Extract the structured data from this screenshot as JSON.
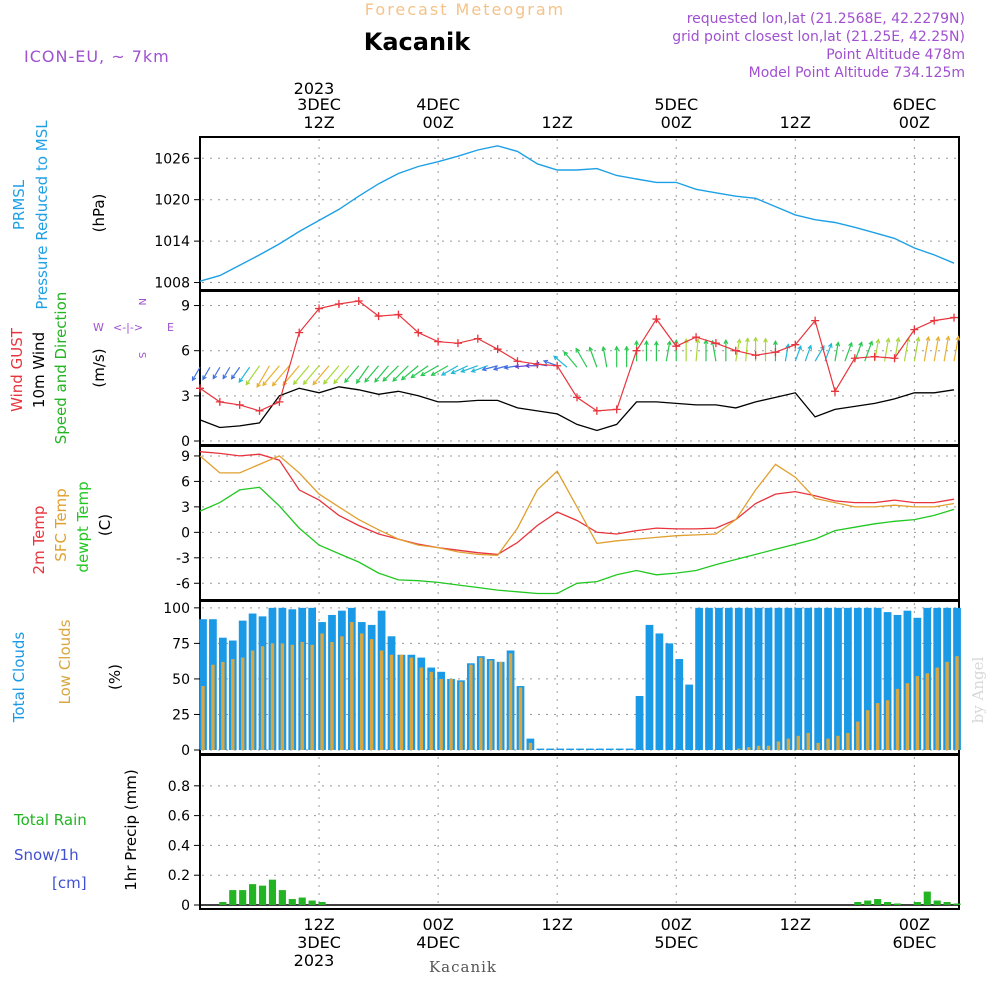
{
  "header": {
    "subtitle": "Forecast Meteogram",
    "title": "Kacanik",
    "model": "ICON-EU, ~ 7km",
    "info": [
      "requested lon,lat (21.2568E, 42.2279N)",
      "grid point closest lon,lat (21.25E, 42.25N)",
      "Point Altitude 478m",
      "Model Point Altitude 734.125m"
    ]
  },
  "footer": {
    "location": "Kacanik",
    "credit": "by Angel"
  },
  "top_axis": {
    "year": "2023",
    "ticks": [
      {
        "t": 12,
        "l1": "3DEC",
        "l2": "12Z"
      },
      {
        "t": 24,
        "l1": "4DEC",
        "l2": "00Z"
      },
      {
        "t": 36,
        "l1": "",
        "l2": "12Z"
      },
      {
        "t": 48,
        "l1": "5DEC",
        "l2": "00Z"
      },
      {
        "t": 60,
        "l1": "",
        "l2": "12Z"
      },
      {
        "t": 72,
        "l1": "6DEC",
        "l2": "00Z"
      }
    ]
  },
  "bottom_axis": {
    "year": "2023",
    "ticks": [
      {
        "t": 12,
        "l1": "12Z",
        "l2": "3DEC"
      },
      {
        "t": 24,
        "l1": "00Z",
        "l2": "4DEC"
      },
      {
        "t": 36,
        "l1": "12Z",
        "l2": ""
      },
      {
        "t": 48,
        "l1": "00Z",
        "l2": "5DEC"
      },
      {
        "t": 60,
        "l1": "12Z",
        "l2": ""
      },
      {
        "t": 72,
        "l1": "00Z",
        "l2": "6DEC"
      }
    ]
  },
  "panel_labels": {
    "pressure": {
      "title1": "PRMSL",
      "title2": "Pressure Reduced to MSL",
      "unit": "(hPa)"
    },
    "wind": {
      "gust": "Wind GUST",
      "wind10": "10m Wind",
      "dir": "Speed and Direction",
      "unit": "(m/s)",
      "compass_ns": "N",
      "compass_s": "S",
      "compass_w": "W",
      "compass_e": "E"
    },
    "temp": {
      "t2m": "2m Temp",
      "sfc": "SFC Temp",
      "dew": "dewpt Temp",
      "unit": "(C)"
    },
    "clouds": {
      "total": "Total Clouds",
      "low": "Low Clouds",
      "unit": "(%)"
    },
    "precip": {
      "rain": "Total  Rain",
      "snow": "Snow/1h",
      "snow_unit": "[cm]",
      "unit": "1hr Precip (mm)"
    }
  },
  "colors": {
    "pressure": "#1ea0e6",
    "gust": "#e8343c",
    "wind10": "#000000",
    "t2m": "#e8343c",
    "sfc": "#e0a030",
    "dew": "#22c822",
    "total_clouds": "#1a9ae6",
    "low_clouds": "#d9a640",
    "rain": "#22b422",
    "label_purple": "#a050d0",
    "title_orange": "#f5c38a"
  },
  "chart_data": [
    {
      "type": "line",
      "name": "PRMSL",
      "xlabel": "",
      "ylabel": "(hPa)",
      "ylim": [
        1007.5,
        1028.5
      ],
      "yticks": [
        1008,
        1014,
        1020,
        1026
      ],
      "time_hours": [
        0,
        2,
        4,
        6,
        8,
        10,
        12,
        14,
        16,
        18,
        20,
        22,
        24,
        26,
        28,
        30,
        32,
        34,
        36,
        38,
        40,
        42,
        44,
        46,
        48,
        50,
        52,
        54,
        56,
        58,
        60,
        62,
        64,
        66,
        68,
        70,
        72,
        74,
        76
      ],
      "values": [
        1008.2,
        1009.0,
        1010.5,
        1012.0,
        1013.6,
        1015.4,
        1017.0,
        1018.6,
        1020.5,
        1022.3,
        1023.8,
        1024.8,
        1025.5,
        1026.3,
        1027.2,
        1027.8,
        1027.0,
        1025.2,
        1024.3,
        1024.3,
        1024.5,
        1023.5,
        1023.0,
        1022.5,
        1022.5,
        1021.5,
        1021.0,
        1020.5,
        1020.2,
        1019.0,
        1017.8,
        1017.1,
        1016.7,
        1016.0,
        1015.2,
        1014.4,
        1013.0,
        1012.0,
        1010.8
      ]
    },
    {
      "type": "line",
      "name": "Wind GUST / 10m Wind",
      "ylabel": "(m/s)",
      "ylim": [
        0,
        9.7
      ],
      "yticks": [
        0,
        3,
        6,
        9
      ],
      "time_hours": [
        0,
        2,
        4,
        6,
        8,
        10,
        12,
        14,
        16,
        18,
        20,
        22,
        24,
        26,
        28,
        30,
        32,
        34,
        36,
        38,
        40,
        42,
        44,
        46,
        48,
        50,
        52,
        54,
        56,
        58,
        60,
        62,
        64,
        66,
        68,
        70,
        72,
        74,
        76
      ],
      "series": [
        {
          "name": "Wind GUST",
          "values": [
            3.5,
            2.6,
            2.4,
            2.0,
            2.6,
            7.2,
            8.8,
            9.1,
            9.3,
            8.3,
            8.4,
            7.2,
            6.6,
            6.5,
            6.8,
            6.1,
            5.3,
            5.1,
            5.0,
            2.9,
            2.0,
            2.1,
            6.0,
            8.1,
            6.3,
            6.9,
            6.5,
            6.0,
            5.7,
            5.9,
            6.4,
            8.0,
            3.3,
            5.5,
            5.6,
            5.5,
            7.4,
            8.0,
            8.2
          ]
        },
        {
          "name": "10m Wind",
          "values": [
            1.4,
            0.9,
            1.0,
            1.2,
            3.0,
            3.5,
            3.2,
            3.6,
            3.4,
            3.1,
            3.3,
            3.0,
            2.6,
            2.6,
            2.7,
            2.7,
            2.2,
            2.0,
            1.8,
            1.1,
            0.7,
            1.1,
            2.6,
            2.6,
            2.5,
            2.4,
            2.4,
            2.2,
            2.6,
            2.9,
            3.2,
            1.6,
            2.1,
            2.3,
            2.5,
            2.8,
            3.2,
            3.2,
            3.4
          ]
        }
      ],
      "arrow_times": [
        0,
        1,
        2,
        3,
        4,
        5,
        6,
        7,
        8,
        9,
        10,
        11,
        12,
        13,
        14,
        15,
        16,
        17,
        18,
        19,
        20,
        21,
        22,
        23,
        24,
        25,
        26,
        27,
        28,
        29,
        30,
        31,
        32,
        33,
        34,
        35,
        36,
        37,
        38,
        39,
        40,
        41,
        42,
        43,
        44,
        45,
        46,
        47,
        48,
        49,
        50,
        51,
        52,
        53,
        54,
        55,
        56,
        57,
        58,
        59,
        60,
        61,
        62,
        63,
        64,
        65,
        66,
        67,
        68,
        69,
        70,
        71,
        72,
        73,
        74,
        75,
        76
      ],
      "arrow_directions_deg": [
        30,
        30,
        30,
        30,
        35,
        35,
        35,
        30,
        40,
        40,
        40,
        40,
        40,
        40,
        40,
        40,
        40,
        35,
        40,
        40,
        45,
        45,
        50,
        55,
        60,
        60,
        60,
        65,
        70,
        70,
        75,
        75,
        80,
        85,
        90,
        100,
        110,
        130,
        140,
        150,
        160,
        170,
        180,
        180,
        180,
        180,
        180,
        190,
        180,
        180,
        185,
        180,
        170,
        180,
        190,
        185,
        180,
        180,
        180,
        190,
        200,
        200,
        210,
        200,
        190,
        200,
        200,
        200,
        190,
        190,
        190,
        190,
        190,
        190,
        190,
        190,
        190
      ],
      "arrow_speeds_ms": [
        1.4,
        1.2,
        1.0,
        1.0,
        1.2,
        2.0,
        3.0,
        3.3,
        3.5,
        3.6,
        3.4,
        3.2,
        3.2,
        3.3,
        3.1,
        3.0,
        2.7,
        2.6,
        2.6,
        2.6,
        2.7,
        2.7,
        2.7,
        2.5,
        2.3,
        2.2,
        2.1,
        2.0,
        1.9,
        1.8,
        1.5,
        1.2,
        1.0,
        0.8,
        0.7,
        0.8,
        1.2,
        1.8,
        2.4,
        2.7,
        2.6,
        2.5,
        2.5,
        2.5,
        2.4,
        2.4,
        2.3,
        2.4,
        2.6,
        2.8,
        2.8,
        2.6,
        2.5,
        2.6,
        2.8,
        3.0,
        3.1,
        2.9,
        2.4,
        1.8,
        1.6,
        1.7,
        1.9,
        2.1,
        2.2,
        2.3,
        2.4,
        2.6,
        2.8,
        3.0,
        3.1,
        3.1,
        3.2,
        3.3,
        3.3,
        3.4,
        3.4
      ]
    },
    {
      "type": "line",
      "name": "Temperatures",
      "ylabel": "(C)",
      "ylim": [
        -7.5,
        9.7
      ],
      "yticks": [
        -6,
        -3,
        0,
        3,
        6,
        9
      ],
      "time_hours": [
        0,
        2,
        4,
        6,
        8,
        10,
        12,
        14,
        16,
        18,
        20,
        22,
        24,
        26,
        28,
        30,
        32,
        34,
        36,
        38,
        40,
        42,
        44,
        46,
        48,
        50,
        52,
        54,
        56,
        58,
        60,
        62,
        64,
        66,
        68,
        70,
        72,
        74,
        76
      ],
      "series": [
        {
          "name": "2m Temp",
          "values": [
            9.5,
            9.3,
            9.0,
            9.2,
            8.5,
            5.0,
            3.8,
            2.0,
            0.8,
            -0.2,
            -0.8,
            -1.4,
            -1.8,
            -2.1,
            -2.4,
            -2.6,
            -1.2,
            0.8,
            2.4,
            1.4,
            0.0,
            -0.2,
            0.2,
            0.5,
            0.4,
            0.4,
            0.5,
            1.5,
            3.4,
            4.5,
            4.8,
            4.3,
            3.7,
            3.5,
            3.5,
            3.8,
            3.5,
            3.5,
            3.9
          ]
        },
        {
          "name": "SFC Temp",
          "values": [
            9.0,
            7.0,
            7.0,
            8.0,
            9.0,
            7.0,
            4.5,
            3.0,
            1.5,
            0.3,
            -0.8,
            -1.5,
            -1.8,
            -2.3,
            -2.6,
            -2.7,
            0.5,
            5.0,
            7.2,
            3.0,
            -1.3,
            -1.0,
            -0.8,
            -0.6,
            -0.4,
            -0.3,
            -0.2,
            1.5,
            5.0,
            8.0,
            6.5,
            4.0,
            3.5,
            3.0,
            3.0,
            3.2,
            3.0,
            3.0,
            3.4
          ]
        },
        {
          "name": "dewpt Temp",
          "values": [
            2.5,
            3.5,
            5.0,
            5.3,
            3.1,
            0.5,
            -1.5,
            -2.5,
            -3.5,
            -4.8,
            -5.6,
            -5.7,
            -5.9,
            -6.2,
            -6.5,
            -6.8,
            -7.0,
            -7.2,
            -7.2,
            -6.0,
            -5.8,
            -5.0,
            -4.5,
            -5.0,
            -4.8,
            -4.5,
            -3.8,
            -3.2,
            -2.6,
            -2.0,
            -1.4,
            -0.8,
            0.2,
            0.6,
            1.0,
            1.3,
            1.5,
            2.0,
            2.7
          ]
        }
      ]
    },
    {
      "type": "bar",
      "name": "Clouds",
      "ylabel": "(%)",
      "ylim": [
        0,
        102
      ],
      "yticks": [
        0,
        25,
        50,
        75,
        100
      ],
      "time_hours": [
        0,
        1,
        2,
        3,
        4,
        5,
        6,
        7,
        8,
        9,
        10,
        11,
        12,
        13,
        14,
        15,
        16,
        17,
        18,
        19,
        20,
        21,
        22,
        23,
        24,
        25,
        26,
        27,
        28,
        29,
        30,
        31,
        32,
        33,
        34,
        35,
        36,
        37,
        38,
        39,
        40,
        41,
        42,
        43,
        44,
        45,
        46,
        47,
        48,
        49,
        50,
        51,
        52,
        53,
        54,
        55,
        56,
        57,
        58,
        59,
        60,
        61,
        62,
        63,
        64,
        65,
        66,
        67,
        68,
        69,
        70,
        71,
        72,
        73,
        74,
        75,
        76
      ],
      "series": [
        {
          "name": "Total Clouds",
          "values": [
            92,
            92,
            79,
            77,
            91,
            96,
            94,
            100,
            100,
            99,
            100,
            100,
            90,
            95,
            98,
            100,
            90,
            88,
            98,
            80,
            67,
            67,
            65,
            58,
            55,
            50,
            49,
            61,
            66,
            64,
            62,
            70,
            45,
            8,
            1,
            1,
            1,
            1,
            1,
            1,
            1,
            1,
            1,
            1,
            38,
            88,
            82,
            75,
            64,
            46,
            100,
            100,
            100,
            100,
            100,
            100,
            100,
            100,
            100,
            100,
            100,
            100,
            100,
            100,
            100,
            100,
            100,
            100,
            100,
            97,
            95,
            98,
            93,
            100,
            100,
            100,
            100
          ]
        },
        {
          "name": "Low Clouds",
          "values": [
            45,
            60,
            62,
            64,
            65,
            70,
            73,
            75,
            75,
            74,
            76,
            74,
            82,
            76,
            80,
            90,
            82,
            78,
            70,
            67,
            67,
            65,
            58,
            55,
            50,
            50,
            48,
            60,
            65,
            63,
            62,
            68,
            44,
            5,
            0,
            0,
            0,
            0,
            0,
            0,
            0,
            0,
            0,
            0,
            0,
            0,
            0,
            0,
            0,
            0,
            0,
            0,
            0,
            0,
            1,
            2,
            3,
            3,
            6,
            8,
            10,
            12,
            5,
            8,
            10,
            12,
            20,
            28,
            33,
            35,
            43,
            47,
            52,
            54,
            58,
            62,
            66
          ]
        }
      ]
    },
    {
      "type": "bar",
      "name": "1hr Precip",
      "ylabel": "1hr Precip (mm)",
      "ylim": [
        0,
        0.98
      ],
      "yticks": [
        0,
        0.2,
        0.4,
        0.6,
        0.8
      ],
      "time_hours": [
        0,
        1,
        2,
        3,
        4,
        5,
        6,
        7,
        8,
        9,
        10,
        11,
        12,
        13,
        14,
        15,
        16,
        17,
        18,
        19,
        20,
        21,
        22,
        23,
        24,
        25,
        26,
        27,
        28,
        29,
        30,
        31,
        32,
        33,
        34,
        35,
        36,
        37,
        38,
        39,
        40,
        41,
        42,
        43,
        44,
        45,
        46,
        47,
        48,
        49,
        50,
        51,
        52,
        53,
        54,
        55,
        56,
        57,
        58,
        59,
        60,
        61,
        62,
        63,
        64,
        65,
        66,
        67,
        68,
        69,
        70,
        71,
        72,
        73,
        74,
        75,
        76
      ],
      "values": [
        0,
        0,
        0.02,
        0.1,
        0.1,
        0.14,
        0.13,
        0.17,
        0.1,
        0.04,
        0.05,
        0.03,
        0.02,
        0,
        0,
        0,
        0,
        0,
        0,
        0,
        0,
        0,
        0,
        0,
        0,
        0,
        0,
        0,
        0,
        0,
        0,
        0,
        0,
        0,
        0,
        0,
        0,
        0,
        0,
        0,
        0,
        0,
        0,
        0,
        0,
        0,
        0,
        0,
        0,
        0,
        0,
        0,
        0,
        0,
        0,
        0,
        0,
        0,
        0,
        0,
        0,
        0,
        0,
        0,
        0,
        0,
        0.02,
        0.03,
        0.04,
        0.02,
        0.01,
        0,
        0.02,
        0.09,
        0.03,
        0.02,
        0.01
      ]
    }
  ]
}
